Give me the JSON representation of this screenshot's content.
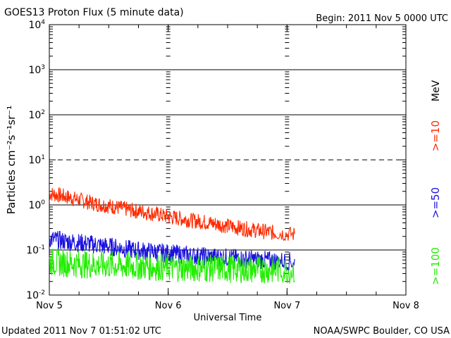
{
  "chart_data": {
    "type": "line",
    "title": "GOES13 Proton Flux (5 minute data)",
    "begin_label": "Begin: 2011 Nov 5 0000 UTC",
    "xlabel": "Universal Time",
    "ylabel": "Particles cm⁻²s⁻¹sr⁻¹",
    "y_scale": "log",
    "ylim": [
      0.01,
      10000
    ],
    "y_ticks": [
      {
        "base": "10",
        "exp": "4",
        "value": 10000
      },
      {
        "base": "10",
        "exp": "3",
        "value": 1000
      },
      {
        "base": "10",
        "exp": "2",
        "value": 100
      },
      {
        "base": "10",
        "exp": "1",
        "value": 10
      },
      {
        "base": "10",
        "exp": "0",
        "value": 1
      },
      {
        "base": "10",
        "exp": "-1",
        "value": 0.1
      },
      {
        "base": "10",
        "exp": "-2",
        "value": 0.01
      }
    ],
    "x_range_days": [
      0,
      3
    ],
    "x_ticks": [
      {
        "label": "Nov 5",
        "day": 0
      },
      {
        "label": "Nov 6",
        "day": 1
      },
      {
        "label": "Nov 7",
        "day": 2
      },
      {
        "label": "Nov 8",
        "day": 3
      }
    ],
    "thresholds": [
      {
        "value": 10,
        "style": "dashed"
      },
      {
        "value": 1000,
        "style": "solid"
      },
      {
        "value": 100,
        "style": "solid"
      },
      {
        "value": 1,
        "style": "solid"
      },
      {
        "value": 0.1,
        "style": "solid"
      }
    ],
    "series": [
      {
        "name": ">=10",
        "color": "#ff2a00",
        "x_days": [
          0.0,
          0.1,
          0.2,
          0.3,
          0.4,
          0.5,
          0.6,
          0.7,
          0.8,
          0.9,
          1.0,
          1.1,
          1.2,
          1.3,
          1.4,
          1.5,
          1.6,
          1.7,
          1.8,
          1.9,
          2.07
        ],
        "values": [
          1.8,
          1.6,
          1.4,
          1.2,
          1.05,
          0.95,
          0.85,
          0.75,
          0.7,
          0.62,
          0.55,
          0.5,
          0.45,
          0.42,
          0.38,
          0.34,
          0.31,
          0.28,
          0.26,
          0.24,
          0.22
        ]
      },
      {
        "name": ">=50",
        "color": "#1a10e0",
        "x_days": [
          0.0,
          0.1,
          0.2,
          0.3,
          0.4,
          0.5,
          0.6,
          0.7,
          0.8,
          0.9,
          1.0,
          1.1,
          1.2,
          1.3,
          1.4,
          1.5,
          1.6,
          1.7,
          1.8,
          1.9,
          2.07
        ],
        "values": [
          0.18,
          0.16,
          0.15,
          0.14,
          0.13,
          0.12,
          0.11,
          0.1,
          0.095,
          0.09,
          0.085,
          0.08,
          0.075,
          0.072,
          0.07,
          0.068,
          0.065,
          0.062,
          0.06,
          0.058,
          0.055
        ]
      },
      {
        "name": ">=100",
        "color": "#22ee00",
        "x_days": [
          0.0,
          0.1,
          0.2,
          0.3,
          0.4,
          0.5,
          0.6,
          0.7,
          0.8,
          0.9,
          1.0,
          1.1,
          1.2,
          1.3,
          1.4,
          1.5,
          1.6,
          1.7,
          1.8,
          1.9,
          2.07
        ],
        "values": [
          0.055,
          0.052,
          0.05,
          0.048,
          0.047,
          0.046,
          0.045,
          0.044,
          0.043,
          0.042,
          0.041,
          0.04,
          0.04,
          0.039,
          0.039,
          0.038,
          0.038,
          0.037,
          0.037,
          0.036,
          0.036
        ]
      }
    ],
    "right_legend": {
      "unit": "MeV",
      "entries": [
        {
          "label": ">=10",
          "color": "#ff2a00"
        },
        {
          "label": ">=50",
          "color": "#1a10e0"
        },
        {
          "label": ">=100",
          "color": "#22ee00"
        }
      ]
    }
  },
  "footer": {
    "updated": "Updated 2011 Nov  7 01:51:02 UTC",
    "credit": "NOAA/SWPC Boulder, CO USA"
  }
}
